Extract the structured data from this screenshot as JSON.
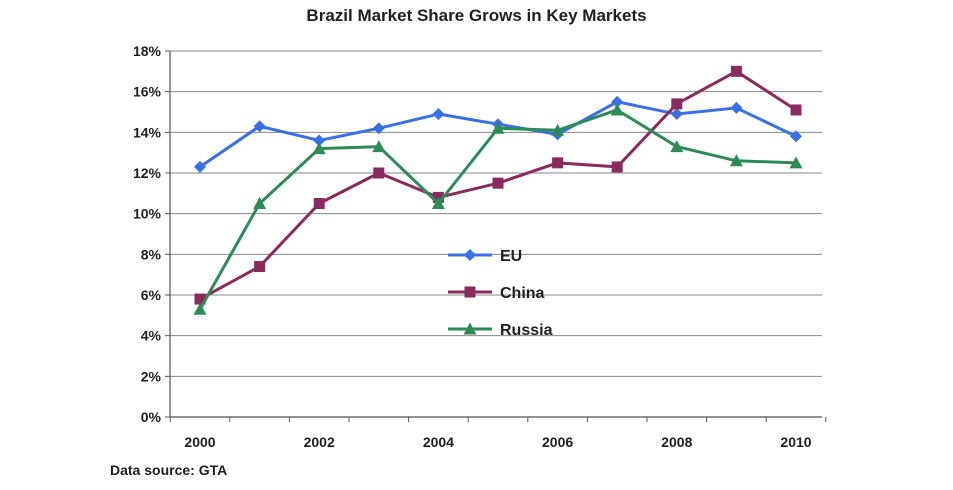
{
  "chart_data": {
    "type": "line",
    "title": "Brazil Market Share Grows in Key Markets",
    "x": [
      2000,
      2001,
      2002,
      2003,
      2004,
      2005,
      2006,
      2007,
      2008,
      2009,
      2010
    ],
    "x_tick_labels": [
      "2000",
      "2002",
      "2004",
      "2006",
      "2008",
      "2010"
    ],
    "x_tick_values": [
      2000,
      2002,
      2004,
      2006,
      2008,
      2010
    ],
    "y_tick_labels": [
      "0%",
      "2%",
      "4%",
      "6%",
      "8%",
      "10%",
      "12%",
      "14%",
      "16%",
      "18%"
    ],
    "y_tick_values": [
      0,
      2,
      4,
      6,
      8,
      10,
      12,
      14,
      16,
      18
    ],
    "ylim": [
      0,
      18
    ],
    "xlim": [
      2000,
      2010
    ],
    "grid": "horizontal",
    "legend_position": "center",
    "series": [
      {
        "name": "EU",
        "color": "#3a6fe6",
        "marker": "diamond",
        "values": [
          12.3,
          14.3,
          13.6,
          14.2,
          14.9,
          14.4,
          13.9,
          15.5,
          14.9,
          15.2,
          13.8
        ]
      },
      {
        "name": "China",
        "color": "#8b2a5c",
        "marker": "square",
        "values": [
          5.8,
          7.4,
          10.5,
          12.0,
          10.8,
          11.5,
          12.5,
          12.3,
          15.4,
          17.0,
          15.1
        ]
      },
      {
        "name": "Russia",
        "color": "#2e8b57",
        "marker": "triangle",
        "values": [
          5.3,
          10.5,
          13.2,
          13.3,
          10.5,
          14.2,
          14.1,
          15.1,
          13.3,
          12.6,
          12.5
        ]
      }
    ]
  },
  "source_note": "Data source:  GTA"
}
